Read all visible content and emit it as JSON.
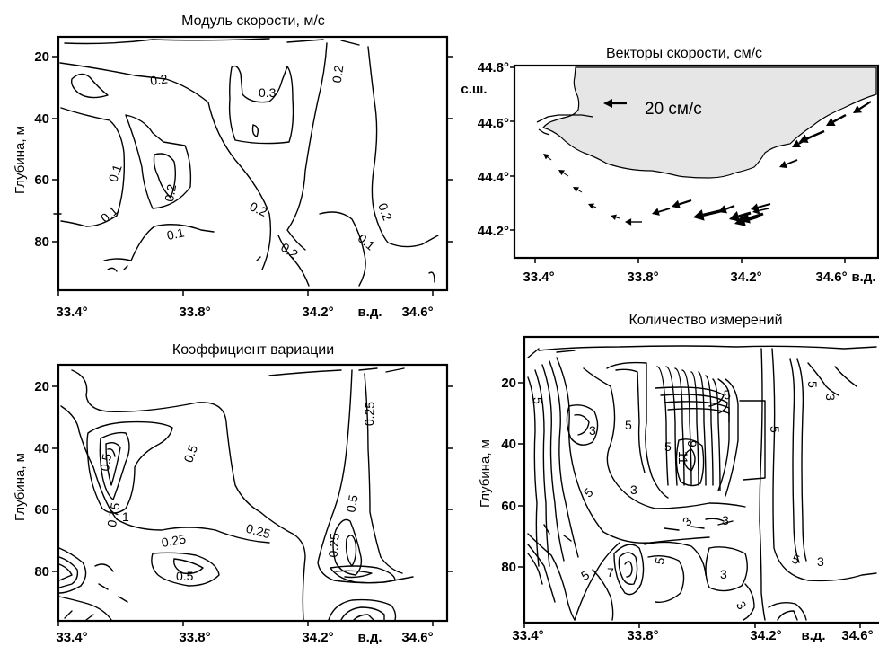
{
  "chart_data": [
    {
      "type": "contour",
      "title": "Модуль скорости, м/с",
      "ylabel": "Глубина, м",
      "x_ticks": [
        "33.4°",
        "33.8°",
        "34.2°",
        "34.6°"
      ],
      "x_unit": "в.д.",
      "y_ticks": [
        "20",
        "40",
        "60",
        "80"
      ],
      "xlim": [
        33.4,
        34.65
      ],
      "ylim": [
        97,
        15
      ],
      "contour_labels": [
        "0.2",
        "0.3",
        "0.1",
        "0.1",
        "0.2",
        "0.2",
        "0.1",
        "0.2",
        "0.1",
        "0.2",
        "0.2"
      ]
    },
    {
      "type": "vector-map",
      "title": "Векторы скорости, см/с",
      "scale_label": "20 см/с",
      "lat_unit": "с.ш.",
      "lon_unit": "в.д.",
      "y_ticks": [
        "44.8°",
        "44.6°",
        "44.4°",
        "44.2°"
      ],
      "x_ticks": [
        "33.4°",
        "33.8°",
        "34.2°",
        "34.6°"
      ],
      "xlim": [
        33.3,
        34.75
      ],
      "ylim": [
        44.07,
        44.82
      ],
      "land_color": "#e6e6e6"
    },
    {
      "type": "contour",
      "title": "Коэффициент вариации",
      "ylabel": "Глубина, м",
      "x_ticks": [
        "33.4°",
        "33.8°",
        "34.2°",
        "34.6°"
      ],
      "x_unit": "в.д.",
      "y_ticks": [
        "20",
        "40",
        "60",
        "80"
      ],
      "xlim": [
        33.4,
        34.65
      ],
      "ylim": [
        97,
        15
      ],
      "contour_labels": [
        "0.25",
        "0.5",
        "0.5",
        "0.75",
        "1",
        "0.25",
        "0.25",
        "0.5",
        "0.25",
        "0.5"
      ]
    },
    {
      "type": "contour",
      "title": "Количество измерений",
      "ylabel": "Глубина, м",
      "x_ticks": [
        "33.4°",
        "33.8°",
        "34.2°",
        "34.6°"
      ],
      "x_unit": "в.д.",
      "y_ticks": [
        "20",
        "40",
        "60",
        "80"
      ],
      "xlim": [
        33.4,
        34.65
      ],
      "ylim": [
        97,
        15
      ],
      "contour_labels": [
        "5",
        "3",
        "5",
        "5",
        "3",
        "5",
        "5",
        "11",
        "9",
        "3",
        "5",
        "3",
        "3",
        "5",
        "3",
        "5",
        "5",
        "7",
        "3",
        "5",
        "3"
      ]
    }
  ]
}
